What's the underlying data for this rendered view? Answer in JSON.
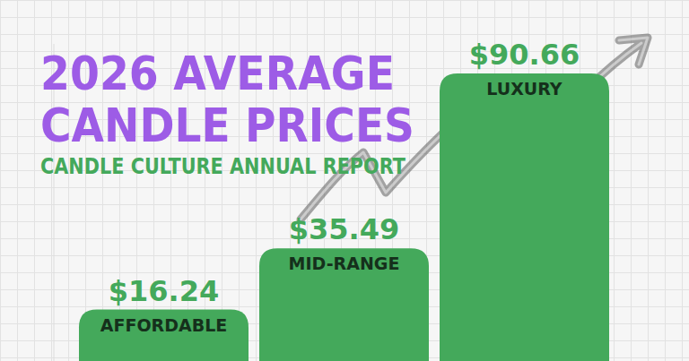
{
  "chart_data": {
    "type": "bar",
    "title": "2026 AVERAGE CANDLE PRICES",
    "subtitle": "CANDLE CULTURE ANNUAL REPORT",
    "categories": [
      "AFFORDABLE",
      "MID-RANGE",
      "LUXURY"
    ],
    "values": [
      16.24,
      35.49,
      90.66
    ],
    "value_labels": [
      "$16.24",
      "$35.49",
      "$90.66"
    ],
    "color": "#44a95b",
    "ylim": [
      0,
      100
    ],
    "grid": false,
    "data_labels": true,
    "tick_labels": false
  }
}
